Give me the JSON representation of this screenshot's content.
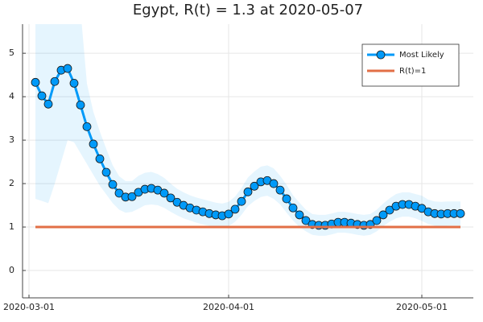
{
  "chart_data": {
    "type": "line",
    "title": "Egypt, R(t) = 1.3 at 2020-05-07",
    "x": [
      "2020-03-02",
      "2020-03-03",
      "2020-03-04",
      "2020-03-05",
      "2020-03-06",
      "2020-03-07",
      "2020-03-08",
      "2020-03-09",
      "2020-03-10",
      "2020-03-11",
      "2020-03-12",
      "2020-03-13",
      "2020-03-14",
      "2020-03-15",
      "2020-03-16",
      "2020-03-17",
      "2020-03-18",
      "2020-03-19",
      "2020-03-20",
      "2020-03-21",
      "2020-03-22",
      "2020-03-23",
      "2020-03-24",
      "2020-03-25",
      "2020-03-26",
      "2020-03-27",
      "2020-03-28",
      "2020-03-29",
      "2020-03-30",
      "2020-03-31",
      "2020-04-01",
      "2020-04-02",
      "2020-04-03",
      "2020-04-04",
      "2020-04-05",
      "2020-04-06",
      "2020-04-07",
      "2020-04-08",
      "2020-04-09",
      "2020-04-10",
      "2020-04-11",
      "2020-04-12",
      "2020-04-13",
      "2020-04-14",
      "2020-04-15",
      "2020-04-16",
      "2020-04-17",
      "2020-04-18",
      "2020-04-19",
      "2020-04-20",
      "2020-04-21",
      "2020-04-22",
      "2020-04-23",
      "2020-04-24",
      "2020-04-25",
      "2020-04-26",
      "2020-04-27",
      "2020-04-28",
      "2020-04-29",
      "2020-04-30",
      "2020-05-01",
      "2020-05-02",
      "2020-05-03",
      "2020-05-04",
      "2020-05-05",
      "2020-05-06",
      "2020-05-07"
    ],
    "series": [
      {
        "name": "Most Likely",
        "color": "#009af9",
        "values": [
          4.33,
          4.02,
          3.83,
          4.35,
          4.61,
          4.65,
          4.31,
          3.81,
          3.31,
          2.91,
          2.57,
          2.26,
          1.98,
          1.78,
          1.69,
          1.7,
          1.8,
          1.87,
          1.89,
          1.85,
          1.78,
          1.67,
          1.57,
          1.5,
          1.44,
          1.39,
          1.35,
          1.31,
          1.28,
          1.26,
          1.3,
          1.41,
          1.59,
          1.81,
          1.94,
          2.04,
          2.07,
          2.0,
          1.85,
          1.65,
          1.44,
          1.28,
          1.15,
          1.06,
          1.04,
          1.04,
          1.07,
          1.11,
          1.11,
          1.09,
          1.06,
          1.04,
          1.06,
          1.15,
          1.28,
          1.39,
          1.48,
          1.52,
          1.52,
          1.48,
          1.43,
          1.35,
          1.31,
          1.3,
          1.31,
          1.31,
          1.31
        ]
      },
      {
        "name": "R(t)=1",
        "color": "#e26f46",
        "x": [
          "2020-03-02",
          "2020-05-07"
        ],
        "values": [
          1,
          1
        ]
      }
    ],
    "band": {
      "color": "#009af9",
      "lower": [
        1.65,
        1.6,
        1.55,
        2.0,
        2.5,
        3.0,
        2.95,
        2.7,
        2.45,
        2.2,
        1.95,
        1.75,
        1.55,
        1.4,
        1.33,
        1.35,
        1.42,
        1.5,
        1.52,
        1.5,
        1.44,
        1.35,
        1.27,
        1.2,
        1.15,
        1.1,
        1.06,
        1.03,
        1.0,
        0.98,
        1.02,
        1.12,
        1.28,
        1.48,
        1.6,
        1.69,
        1.72,
        1.65,
        1.52,
        1.33,
        1.15,
        1.0,
        0.9,
        0.82,
        0.8,
        0.8,
        0.83,
        0.87,
        0.87,
        0.85,
        0.82,
        0.8,
        0.82,
        0.9,
        1.02,
        1.12,
        1.2,
        1.24,
        1.24,
        1.2,
        1.14,
        1.07,
        1.03,
        1.02,
        1.03,
        1.03,
        1.03
      ],
      "upper": [
        6.5,
        6.5,
        6.5,
        6.5,
        6.5,
        6.5,
        6.5,
        6.0,
        4.3,
        3.65,
        3.2,
        2.8,
        2.42,
        2.17,
        2.06,
        2.06,
        2.18,
        2.25,
        2.27,
        2.22,
        2.13,
        2.0,
        1.88,
        1.8,
        1.73,
        1.68,
        1.64,
        1.6,
        1.56,
        1.54,
        1.58,
        1.7,
        1.9,
        2.14,
        2.28,
        2.39,
        2.42,
        2.35,
        2.18,
        1.97,
        1.73,
        1.56,
        1.4,
        1.3,
        1.28,
        1.28,
        1.31,
        1.35,
        1.35,
        1.33,
        1.3,
        1.28,
        1.3,
        1.4,
        1.54,
        1.66,
        1.76,
        1.8,
        1.8,
        1.76,
        1.72,
        1.63,
        1.59,
        1.58,
        1.59,
        1.59,
        1.59
      ]
    },
    "xlim": [
      "2020-02-29",
      "2020-05-09"
    ],
    "xticks": [
      "2020-03-01",
      "2020-04-01",
      "2020-05-01"
    ],
    "ylim": [
      -0.63,
      5.67
    ],
    "yticks": [
      0,
      1,
      2,
      3,
      4,
      5
    ],
    "grid": true,
    "legend": "top-right"
  }
}
